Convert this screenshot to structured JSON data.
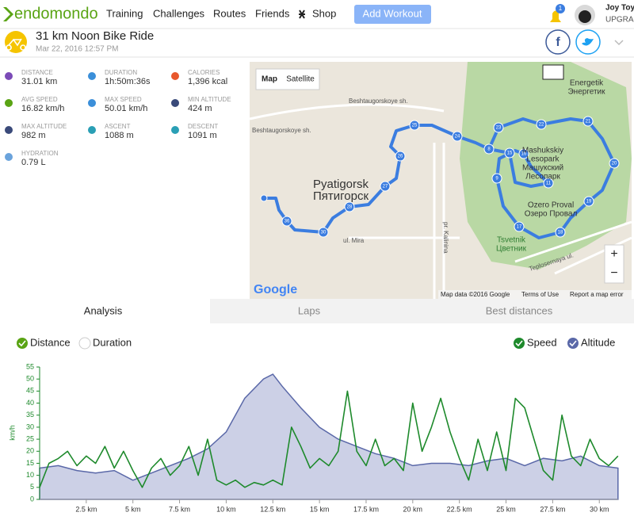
{
  "header": {
    "logo": "endomondo",
    "nav": [
      "Training",
      "Challenges",
      "Routes",
      "Friends",
      "Shop"
    ],
    "button": "Add Workout",
    "notification_count": "1",
    "user": "Joy Toy",
    "upgrade": "UPGRAD"
  },
  "workout": {
    "title": "31 km Noon Bike Ride",
    "date": "Mar 22, 2016 12:57 PM"
  },
  "stats": [
    {
      "label": "DISTANCE",
      "value": "31.01 km"
    },
    {
      "label": "DURATION",
      "value": "1h:50m:36s"
    },
    {
      "label": "CALORIES",
      "value": "1,396 kcal"
    },
    {
      "label": "AVG SPEED",
      "value": "16.82 km/h"
    },
    {
      "label": "MAX SPEED",
      "value": "50.01 km/h"
    },
    {
      "label": "MIN ALTITUDE",
      "value": "424 m"
    },
    {
      "label": "MAX ALTITUDE",
      "value": "982 m"
    },
    {
      "label": "ASCENT",
      "value": "1088 m"
    },
    {
      "label": "DESCENT",
      "value": "1091 m"
    },
    {
      "label": "HYDRATION",
      "value": "0.79 L"
    }
  ],
  "map": {
    "map_button": "Map",
    "satellite_button": "Satellite",
    "city": "Pyatigorsk",
    "city_ru": "Пятигорск",
    "park": "Mashukskiy",
    "park2": "Lesopark",
    "park_ru": "Машукский",
    "park_ru2": "Лесопарк",
    "energetik": "Energetik",
    "energetik_ru": "Энергетик",
    "lake": "Ozero Proval",
    "lake_ru": "Озеро Провал",
    "tsvetnik": "Tsvetnik",
    "tsvetnik_ru": "Цветник",
    "street1": "Beshtaugorskoye sh.",
    "street2": "Beshtaugorskoye sh.",
    "street3": "ul. Mira",
    "street4": "Teplosernaya ul.",
    "street5": "pr. Kalinina",
    "google": "Google",
    "attribution": "Map data ©2016 Google",
    "terms": "Terms of Use",
    "report": "Report a map error",
    "zoom_in": "+",
    "zoom_out": "−",
    "markers": [
      "36",
      "30",
      "28",
      "27",
      "26",
      "25",
      "24",
      "23",
      "22",
      "21",
      "20",
      "19",
      "18",
      "17",
      "16",
      "15",
      "11",
      "9",
      "8"
    ]
  },
  "tabs": [
    "Analysis",
    "Laps",
    "Best distances"
  ],
  "toggles": [
    "Distance",
    "Duration"
  ],
  "chart_data": {
    "type": "line",
    "y_label": "km/h",
    "xlim": [
      0,
      31.01
    ],
    "ylim": [
      0,
      55
    ],
    "y2lim": [
      323,
      1020
    ],
    "xticks": [
      {
        "value": 2.5,
        "label": "2.5 km"
      },
      {
        "value": 5,
        "label": "5 km"
      },
      {
        "value": 7.5,
        "label": "7.5 km"
      },
      {
        "value": 10,
        "label": "10 km"
      },
      {
        "value": 12.5,
        "label": "12.5 km"
      },
      {
        "value": 15,
        "label": "15 km"
      },
      {
        "value": 17.5,
        "label": "17.5 km"
      },
      {
        "value": 20,
        "label": "20 km"
      },
      {
        "value": 22.5,
        "label": "22.5 km"
      },
      {
        "value": 25,
        "label": "25 km"
      },
      {
        "value": 27.5,
        "label": "27.5 km"
      },
      {
        "value": 30,
        "label": "30 km"
      }
    ],
    "yticks": [
      0,
      5,
      10,
      15,
      20,
      25,
      30,
      35,
      40,
      45,
      50,
      55
    ],
    "series": [
      {
        "name": "Speed",
        "color": "#1e8a2c",
        "x": [
          0,
          0.5,
          1,
          1.5,
          2,
          2.5,
          3,
          3.5,
          4,
          4.5,
          5,
          5.5,
          6,
          6.5,
          7,
          7.5,
          8,
          8.5,
          9,
          9.5,
          10,
          10.5,
          11,
          11.5,
          12,
          12.5,
          13,
          13.5,
          14,
          14.5,
          15,
          15.5,
          16,
          16.5,
          17,
          17.5,
          18,
          18.5,
          19,
          19.5,
          20,
          20.5,
          21,
          21.5,
          22,
          22.5,
          23,
          23.5,
          24,
          24.5,
          25,
          25.5,
          26,
          26.5,
          27,
          27.5,
          28,
          28.5,
          29,
          29.5,
          30,
          30.5,
          31
        ],
        "values": [
          5,
          15,
          17,
          20,
          14,
          18,
          15,
          22,
          13,
          20,
          12,
          5,
          13,
          17,
          10,
          14,
          22,
          10,
          25,
          8,
          6,
          8,
          5,
          7,
          6,
          8,
          6,
          30,
          22,
          13,
          17,
          14,
          20,
          45,
          20,
          14,
          25,
          14,
          17,
          12,
          40,
          20,
          30,
          42,
          28,
          17,
          8,
          25,
          12,
          28,
          12,
          42,
          38,
          25,
          12,
          8,
          35,
          18,
          14,
          25,
          17,
          14,
          18
        ]
      },
      {
        "name": "Altitude",
        "color": "#5a68a8",
        "fill": "#ccd0e6",
        "axis": "y2",
        "x": [
          0,
          1,
          2,
          3,
          4,
          5,
          6,
          7,
          8,
          9,
          10,
          11,
          12,
          12.5,
          13,
          14,
          15,
          16,
          17,
          18,
          19,
          20,
          21,
          22,
          23,
          24,
          25,
          26,
          27,
          28,
          29,
          30,
          31
        ],
        "values": [
          488,
          501,
          475,
          462,
          475,
          424,
          462,
          501,
          539,
          589,
          678,
          856,
          957,
          982,
          919,
          805,
          703,
          640,
          602,
          564,
          539,
          501,
          513,
          513,
          501,
          526,
          539,
          501,
          539,
          526,
          551,
          501,
          488
        ]
      }
    ]
  }
}
